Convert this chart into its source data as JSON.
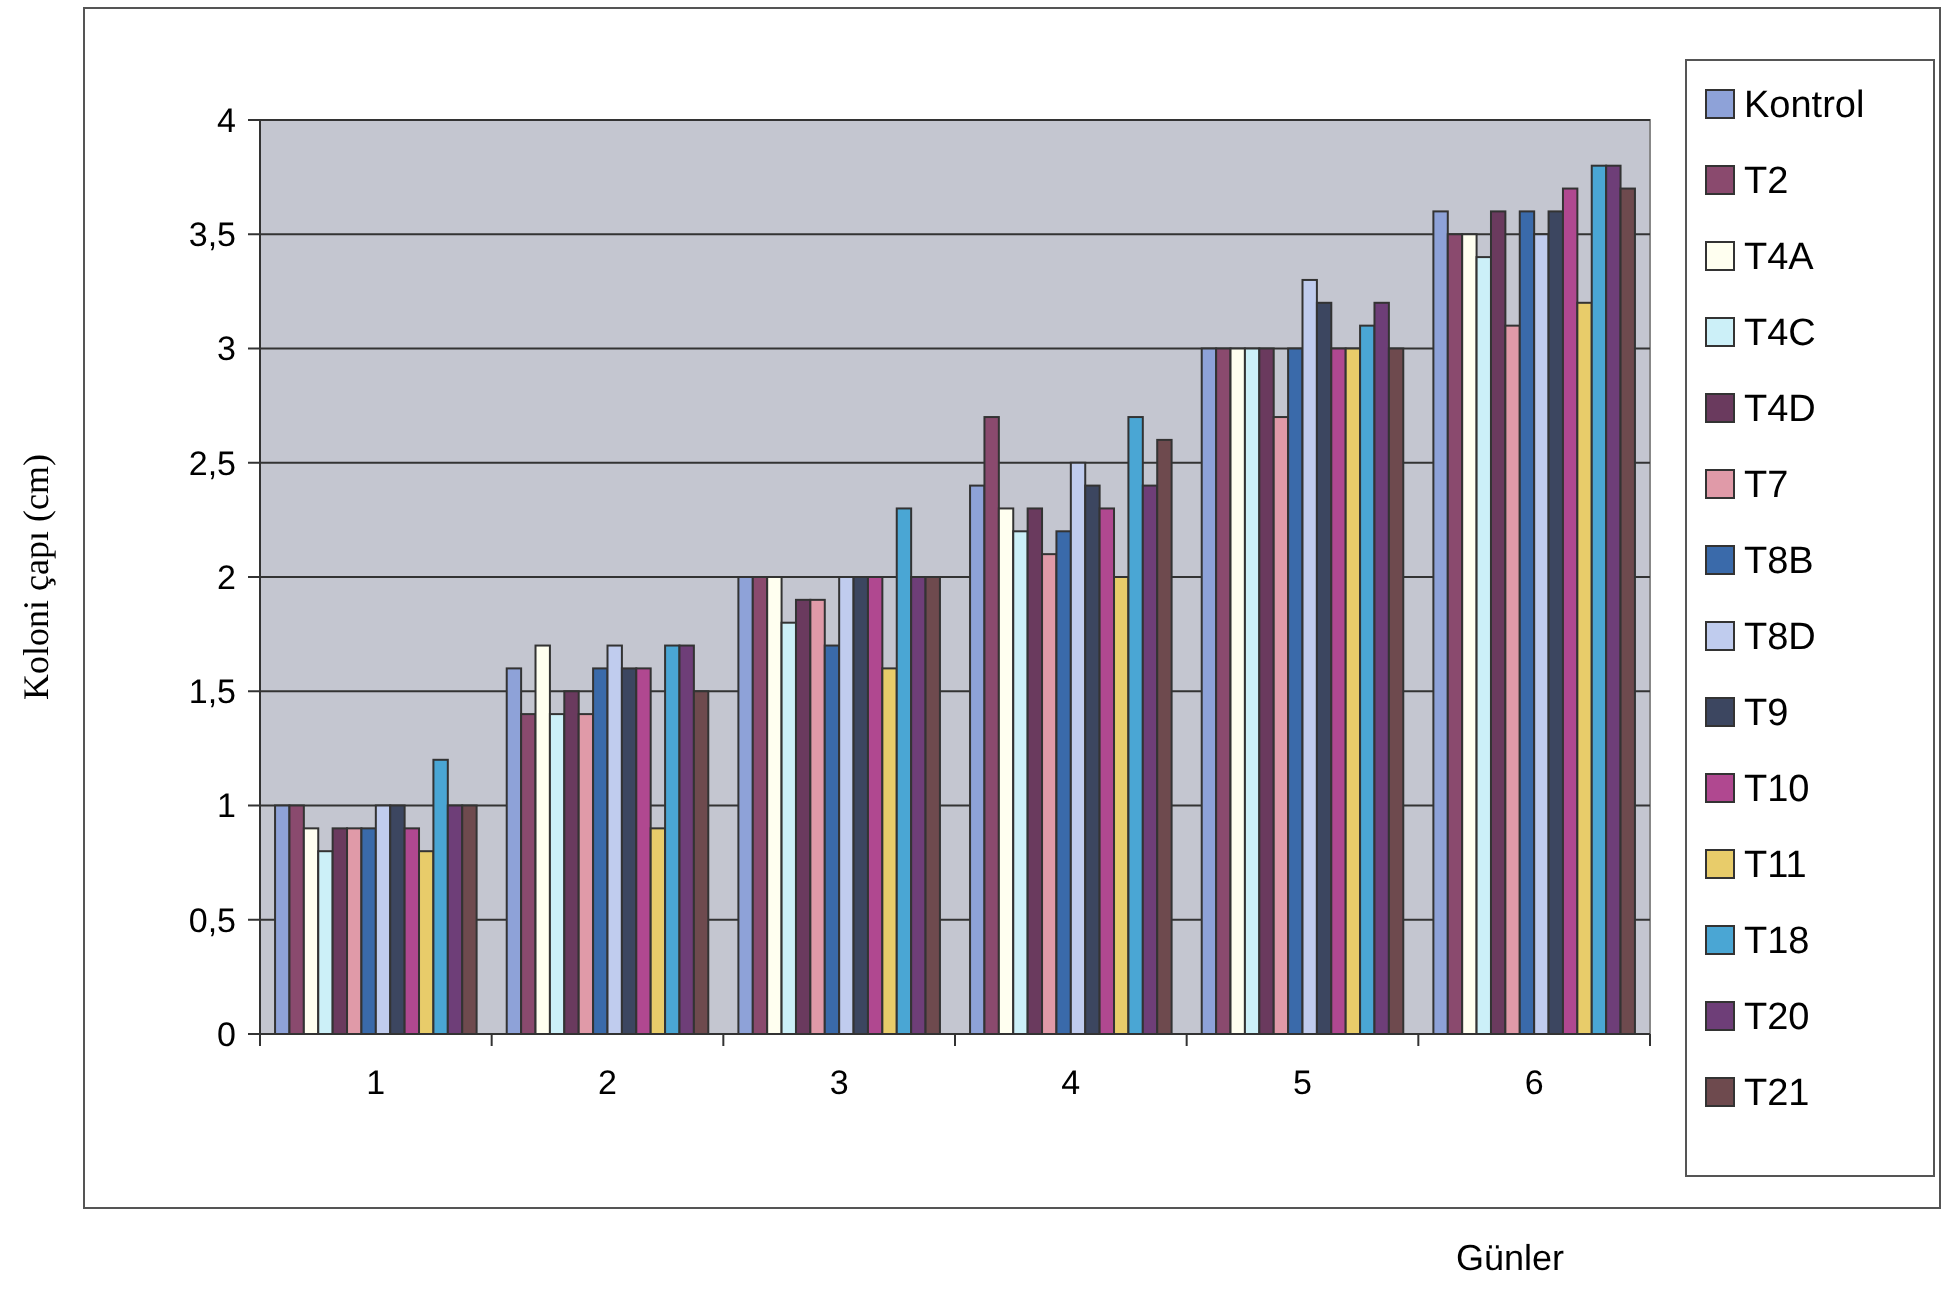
{
  "chart_data": {
    "type": "bar",
    "xlabel": "Günler",
    "ylabel": "Koloni çapı (cm)",
    "categories": [
      "1",
      "2",
      "3",
      "4",
      "5",
      "6"
    ],
    "ylim": [
      0,
      4
    ],
    "yticks": [
      0,
      {
        "value": 0.5,
        "label": "0,5"
      },
      1,
      {
        "value": 1.5,
        "label": "1,5"
      },
      2,
      {
        "value": 2.5,
        "label": "2,5"
      },
      3,
      {
        "value": 3.5,
        "label": "3,5"
      },
      4
    ],
    "grid": "y",
    "legend": "right",
    "series": [
      {
        "name": "Kontrol",
        "color": "#8ea2d8",
        "values": [
          1,
          1.6,
          2,
          2.4,
          3,
          3.6
        ]
      },
      {
        "name": "T2",
        "color": "#8a4a6e",
        "values": [
          1,
          1.4,
          2,
          2.7,
          3,
          3.5
        ]
      },
      {
        "name": "T4A",
        "color": "#fffff0",
        "values": [
          0.9,
          1.7,
          2,
          2.3,
          3,
          3.5
        ]
      },
      {
        "name": "T4C",
        "color": "#ccf0f8",
        "values": [
          0.8,
          1.4,
          1.8,
          2.2,
          3,
          3.4
        ]
      },
      {
        "name": "T4D",
        "color": "#6a3a5e",
        "values": [
          0.9,
          1.5,
          1.9,
          2.3,
          3,
          3.6
        ]
      },
      {
        "name": "T7",
        "color": "#e09aa8",
        "values": [
          0.9,
          1.4,
          1.9,
          2.1,
          2.7,
          3.1
        ]
      },
      {
        "name": "T8B",
        "color": "#3a6aaa",
        "values": [
          0.9,
          1.6,
          1.7,
          2.2,
          3,
          3.6
        ]
      },
      {
        "name": "T8D",
        "color": "#c0ccee",
        "values": [
          1,
          1.7,
          2,
          2.5,
          3.3,
          3.5
        ]
      },
      {
        "name": "T9",
        "color": "#3c4660",
        "values": [
          1,
          1.6,
          2,
          2.4,
          3.2,
          3.6
        ]
      },
      {
        "name": "T10",
        "color": "#b04890",
        "values": [
          0.9,
          1.6,
          2,
          2.3,
          3,
          3.7
        ]
      },
      {
        "name": "T11",
        "color": "#e8cc6a",
        "values": [
          0.8,
          0.9,
          1.6,
          2,
          3,
          3.2
        ]
      },
      {
        "name": "T18",
        "color": "#4aa6d4",
        "values": [
          1.2,
          1.7,
          2.3,
          2.7,
          3.1,
          3.8
        ]
      },
      {
        "name": "T20",
        "color": "#6e3e78",
        "values": [
          1,
          1.7,
          2,
          2.4,
          3.2,
          3.8
        ]
      },
      {
        "name": "T21",
        "color": "#6e4a4e",
        "values": [
          1,
          1.5,
          2,
          2.6,
          3,
          3.7
        ]
      }
    ]
  }
}
